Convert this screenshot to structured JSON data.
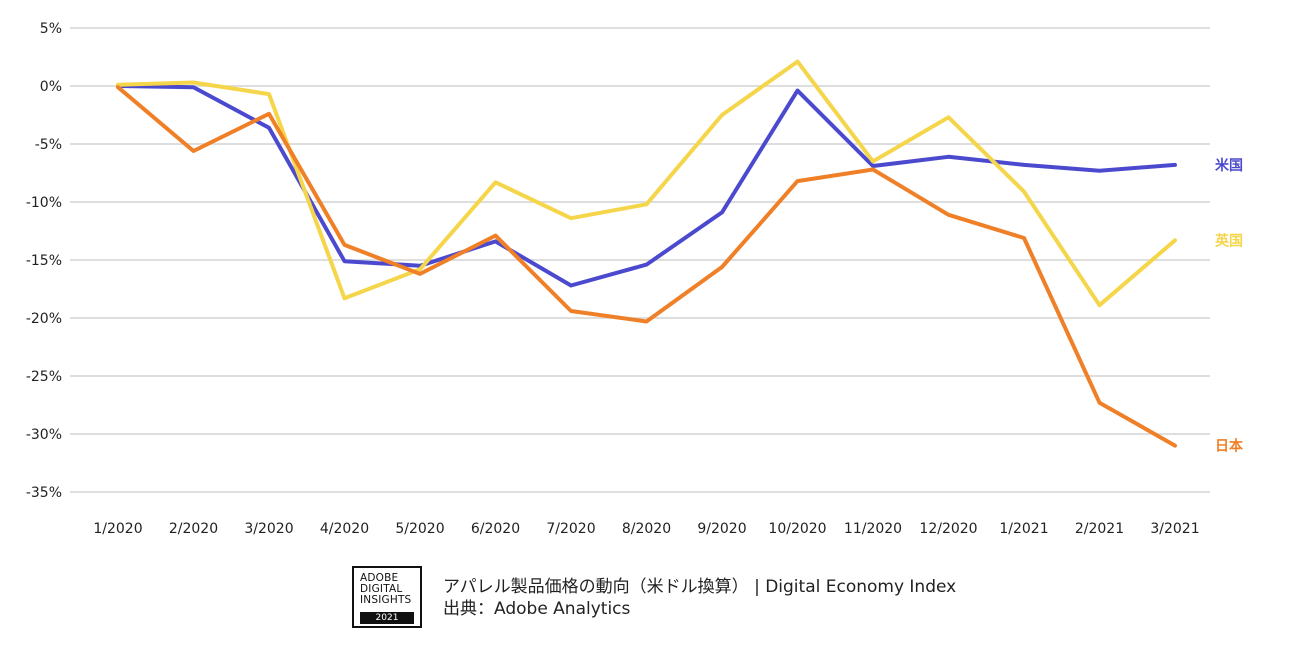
{
  "chart_data": {
    "type": "line",
    "categories": [
      "1/2020",
      "2/2020",
      "3/2020",
      "4/2020",
      "5/2020",
      "6/2020",
      "7/2020",
      "8/2020",
      "9/2020",
      "10/2020",
      "11/2020",
      "12/2020",
      "1/2021",
      "2/2021",
      "3/2021"
    ],
    "series": [
      {
        "name": "米国",
        "color": "#4b4acf",
        "values": [
          0,
          -0.1,
          -3.6,
          -15.1,
          -15.5,
          -13.4,
          -17.2,
          -15.4,
          -10.9,
          -0.4,
          -6.9,
          -6.1,
          -6.8,
          -7.3,
          -6.8
        ]
      },
      {
        "name": "英国",
        "color": "#f5d54a",
        "values": [
          0.1,
          0.3,
          -0.7,
          -18.3,
          -15.8,
          -8.3,
          -11.4,
          -10.2,
          -2.5,
          2.1,
          -6.5,
          -2.7,
          -9.1,
          -18.9,
          -13.3
        ]
      },
      {
        "name": "日本",
        "color": "#f08028",
        "values": [
          -0.1,
          -5.6,
          -2.4,
          -13.7,
          -16.2,
          -12.9,
          -19.4,
          -20.3,
          -15.6,
          -8.2,
          -7.2,
          -11.1,
          -13.1,
          -27.3,
          -31.0
        ]
      }
    ],
    "yticks": [
      "5%",
      "0%",
      "-5%",
      "-10%",
      "-15%",
      "-20%",
      "-25%",
      "-30%",
      "-35%"
    ],
    "ytick_values": [
      5,
      0,
      -5,
      -10,
      -15,
      -20,
      -25,
      -30,
      -35
    ],
    "ylim": [
      -35,
      5
    ],
    "grid": true,
    "legend_position": "right-inline",
    "title": "アパレル製品価格の動向（米ドル換算） | Digital Economy Index"
  },
  "footer": {
    "badge": {
      "line1": "ADOBE",
      "line2": "DIGITAL",
      "line3": "INSIGHTS",
      "year": "2021"
    },
    "caption": "アパレル製品価格の動向（米ドル換算） | Digital Economy Index",
    "source": "出典：Adobe Analytics"
  },
  "colors": {
    "grid": "#d4d4d4",
    "text": "#222222"
  }
}
